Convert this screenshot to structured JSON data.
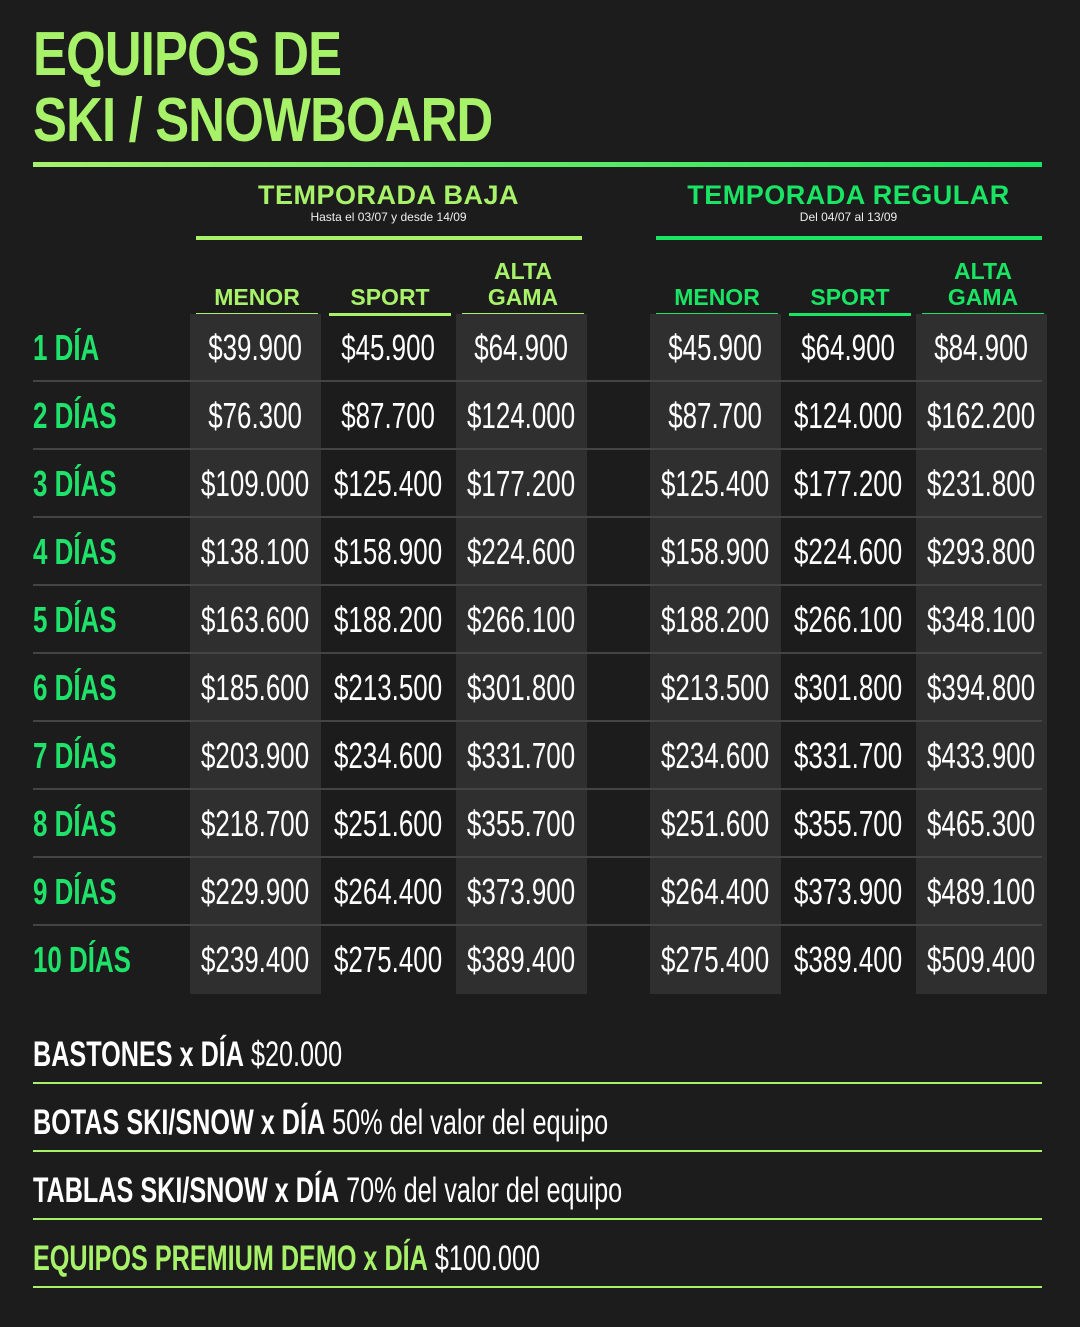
{
  "title": [
    "EQUIPOS DE",
    "SKI / SNOWBOARD"
  ],
  "colors": {
    "light_green": "#a8f26a",
    "green": "#19e463",
    "background": "#1c1c1c",
    "cell_shade": "#2f2f2f"
  },
  "seasons": [
    {
      "name": "TEMPORADA BAJA",
      "dates": "Hasta el 03/07 y desde 14/09",
      "columns": [
        "MENOR",
        "SPORT",
        "ALTA GAMA"
      ],
      "color": "#a8f26a"
    },
    {
      "name": "TEMPORADA REGULAR",
      "dates": "Del 04/07 al 13/09",
      "columns": [
        "MENOR",
        "SPORT",
        "ALTA GAMA"
      ],
      "color": "#19e463"
    }
  ],
  "rows": [
    {
      "label": "1 DÍA",
      "baja": [
        "$39.900",
        "$45.900",
        "$64.900"
      ],
      "regular": [
        "$45.900",
        "$64.900",
        "$84.900"
      ]
    },
    {
      "label": "2 DÍAS",
      "baja": [
        "$76.300",
        "$87.700",
        "$124.000"
      ],
      "regular": [
        "$87.700",
        "$124.000",
        "$162.200"
      ]
    },
    {
      "label": "3 DÍAS",
      "baja": [
        "$109.000",
        "$125.400",
        "$177.200"
      ],
      "regular": [
        "$125.400",
        "$177.200",
        "$231.800"
      ]
    },
    {
      "label": "4 DÍAS",
      "baja": [
        "$138.100",
        "$158.900",
        "$224.600"
      ],
      "regular": [
        "$158.900",
        "$224.600",
        "$293.800"
      ]
    },
    {
      "label": "5 DÍAS",
      "baja": [
        "$163.600",
        "$188.200",
        "$266.100"
      ],
      "regular": [
        "$188.200",
        "$266.100",
        "$348.100"
      ]
    },
    {
      "label": "6 DÍAS",
      "baja": [
        "$185.600",
        "$213.500",
        "$301.800"
      ],
      "regular": [
        "$213.500",
        "$301.800",
        "$394.800"
      ]
    },
    {
      "label": "7 DÍAS",
      "baja": [
        "$203.900",
        "$234.600",
        "$331.700"
      ],
      "regular": [
        "$234.600",
        "$331.700",
        "$433.900"
      ]
    },
    {
      "label": "8 DÍAS",
      "baja": [
        "$218.700",
        "$251.600",
        "$355.700"
      ],
      "regular": [
        "$251.600",
        "$355.700",
        "$465.300"
      ]
    },
    {
      "label": "9 DÍAS",
      "baja": [
        "$229.900",
        "$264.400",
        "$373.900"
      ],
      "regular": [
        "$264.400",
        "$373.900",
        "$489.100"
      ]
    },
    {
      "label": "10 DÍAS",
      "baja": [
        "$239.400",
        "$275.400",
        "$389.400"
      ],
      "regular": [
        "$275.400",
        "$389.400",
        "$509.400"
      ]
    }
  ],
  "extras": [
    {
      "label": "BASTONES x DÍA",
      "value": "$20.000",
      "highlight": false
    },
    {
      "label": "BOTAS SKI/SNOW x DÍA",
      "value": "50% del valor del equipo",
      "highlight": false
    },
    {
      "label": "TABLAS SKI/SNOW x DÍA",
      "value": "70% del valor del equipo",
      "highlight": false
    },
    {
      "label": "EQUIPOS PREMIUM DEMO x DÍA",
      "value": "$100.000",
      "highlight": true
    }
  ]
}
